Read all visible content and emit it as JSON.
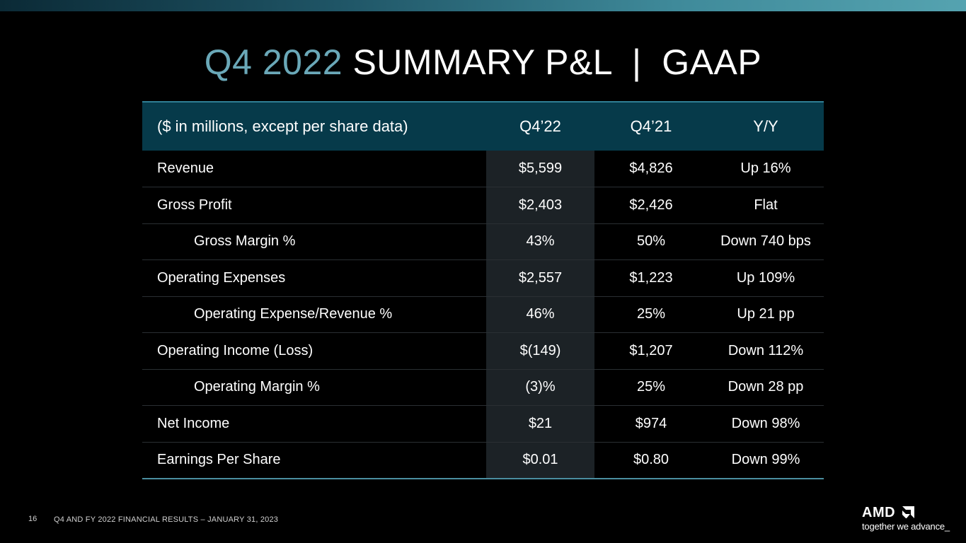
{
  "title": {
    "accent": "Q4 2022",
    "main": " SUMMARY P&L  |  GAAP"
  },
  "table": {
    "headers": [
      "($ in millions, except per share data)",
      "Q4’22",
      "Q4’21",
      "Y/Y"
    ],
    "rows": [
      {
        "label": "Revenue",
        "indent": false,
        "q4_22": "$5,599",
        "q4_21": "$4,826",
        "yy": "Up 16%"
      },
      {
        "label": "Gross Profit",
        "indent": false,
        "q4_22": "$2,403",
        "q4_21": "$2,426",
        "yy": "Flat"
      },
      {
        "label": "Gross Margin %",
        "indent": true,
        "q4_22": "43%",
        "q4_21": "50%",
        "yy": "Down 740 bps"
      },
      {
        "label": "Operating Expenses",
        "indent": false,
        "q4_22": "$2,557",
        "q4_21": "$1,223",
        "yy": "Up 109%"
      },
      {
        "label": "Operating Expense/Revenue %",
        "indent": true,
        "q4_22": "46%",
        "q4_21": "25%",
        "yy": "Up 21 pp"
      },
      {
        "label": "Operating Income (Loss)",
        "indent": false,
        "q4_22": "$(149)",
        "q4_21": "$1,207",
        "yy": "Down 112%"
      },
      {
        "label": "Operating Margin %",
        "indent": true,
        "q4_22": "(3)%",
        "q4_21": "25%",
        "yy": "Down 28 pp"
      },
      {
        "label": "Net Income",
        "indent": false,
        "q4_22": "$21",
        "q4_21": "$974",
        "yy": "Down 98%"
      },
      {
        "label": "Earnings Per Share",
        "indent": false,
        "q4_22": "$0.01",
        "q4_21": "$0.80",
        "yy": "Down 99%"
      }
    ]
  },
  "footer": {
    "page_number": "16",
    "text": "Q4 AND FY 2022 FINANCIAL RESULTS – JANUARY 31, 2023"
  },
  "logo": {
    "word": "AMD",
    "tagline": "together we advance_",
    "icon": "amd-arrow-icon"
  },
  "colors": {
    "accent": "#6aa8b8",
    "header_bg": "#063a4a",
    "highlight_column": "#1c2226",
    "background": "#000000"
  }
}
